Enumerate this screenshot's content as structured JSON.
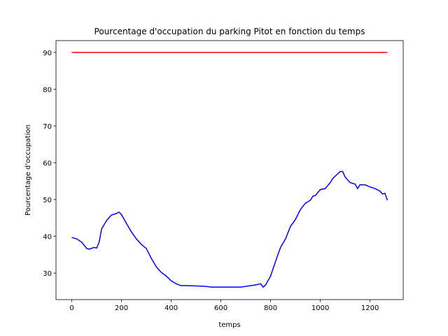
{
  "chart_data": {
    "type": "line",
    "title": "Pourcentage d'occupation du parking Pitot en fonction du temps",
    "xlabel": "temps",
    "ylabel": "Pourcentage d'occupation",
    "xlim": [
      -63.5,
      1333.5
    ],
    "ylim": [
      22.8,
      93.2
    ],
    "xticks": [
      0,
      200,
      400,
      600,
      800,
      1000,
      1200
    ],
    "yticks": [
      30,
      40,
      50,
      60,
      70,
      80,
      90
    ],
    "series": [
      {
        "color": "#0000ff",
        "x": [
          0,
          20,
          40,
          60,
          70,
          90,
          100,
          110,
          120,
          140,
          160,
          180,
          190,
          200,
          220,
          240,
          260,
          280,
          300,
          320,
          340,
          360,
          380,
          400,
          420,
          440,
          460,
          500,
          540,
          560,
          580,
          600,
          680,
          700,
          740,
          760,
          770,
          780,
          800,
          820,
          840,
          860,
          880,
          900,
          920,
          940,
          960,
          970,
          980,
          1000,
          1020,
          1040,
          1050,
          1070,
          1080,
          1090,
          1100,
          1120,
          1140,
          1150,
          1160,
          1180,
          1200,
          1220,
          1240,
          1250,
          1260,
          1270
        ],
        "values": [
          39.7,
          39.3,
          38.4,
          36.7,
          36.5,
          37.0,
          36.8,
          38.4,
          42.0,
          44.3,
          45.8,
          46.2,
          46.6,
          45.9,
          43.5,
          41.2,
          39.3,
          37.8,
          36.7,
          34.0,
          31.7,
          30.2,
          29.2,
          27.9,
          27.1,
          26.6,
          26.6,
          26.5,
          26.4,
          26.2,
          26.2,
          26.2,
          26.2,
          26.4,
          26.8,
          27.1,
          26.2,
          26.8,
          29.2,
          33.2,
          37.0,
          39.3,
          42.7,
          44.6,
          47.3,
          49.0,
          49.8,
          50.9,
          51.1,
          52.7,
          53.0,
          54.6,
          55.7,
          57.0,
          57.6,
          57.6,
          56.1,
          54.6,
          54.2,
          53.0,
          54.0,
          54.0,
          53.4,
          53.0,
          52.3,
          51.5,
          51.7,
          49.8
        ]
      },
      {
        "color": "#ff0000",
        "x": [
          0,
          1270
        ],
        "values": [
          90,
          90
        ]
      }
    ]
  }
}
